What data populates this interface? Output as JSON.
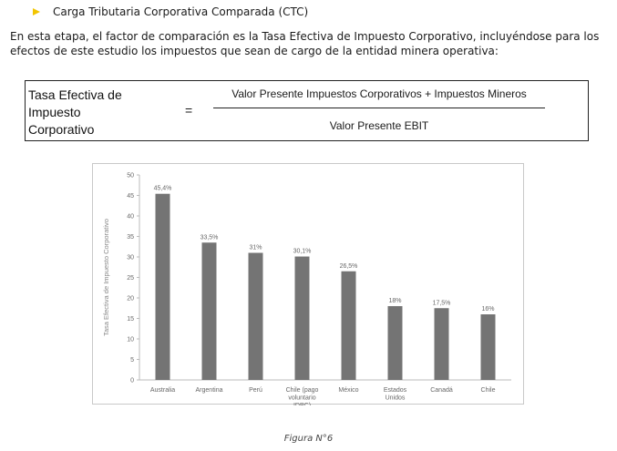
{
  "heading": "Carga Tributaria Corporativa Comparada (CTC)",
  "paragraph": "En esta etapa, el factor de comparación es la Tasa Efectiva de Impuesto Corporativo, incluyéndose para los efectos de este estudio los impuestos que sean de cargo de la entidad minera operativa:",
  "formula": {
    "lhs_lines": [
      "Tasa Efectiva de",
      "Impuesto",
      "Corporativo"
    ],
    "equals": "=",
    "numerator": "Valor Presente Impuestos Corporativos + Impuestos Mineros",
    "denominator": "Valor Presente EBIT"
  },
  "chart_data": {
    "type": "bar",
    "categories": [
      [
        "Australia"
      ],
      [
        "Argentina"
      ],
      [
        "Perú"
      ],
      [
        "Chile (pago",
        "voluntario",
        "IDPC)"
      ],
      [
        "México"
      ],
      [
        "Estados",
        "Unidos"
      ],
      [
        "Canadá"
      ],
      [
        "Chile"
      ]
    ],
    "values": [
      45.4,
      33.5,
      31,
      30.1,
      26.5,
      18,
      17.5,
      16
    ],
    "data_labels": [
      "45,4%",
      "33,5%",
      "31%",
      "30,1%",
      "26,5%",
      "18%",
      "17,5%",
      "16%"
    ],
    "ylabel": "Tasa Efectiva de Impuesto Corporativo",
    "ylim": [
      0,
      50
    ],
    "yticks": [
      0,
      5,
      10,
      15,
      20,
      25,
      30,
      35,
      40,
      45,
      50
    ],
    "bar_color": "#747474",
    "grid": false
  },
  "caption": "Figura N°6",
  "colors": {
    "bullet": "#f2c500"
  }
}
